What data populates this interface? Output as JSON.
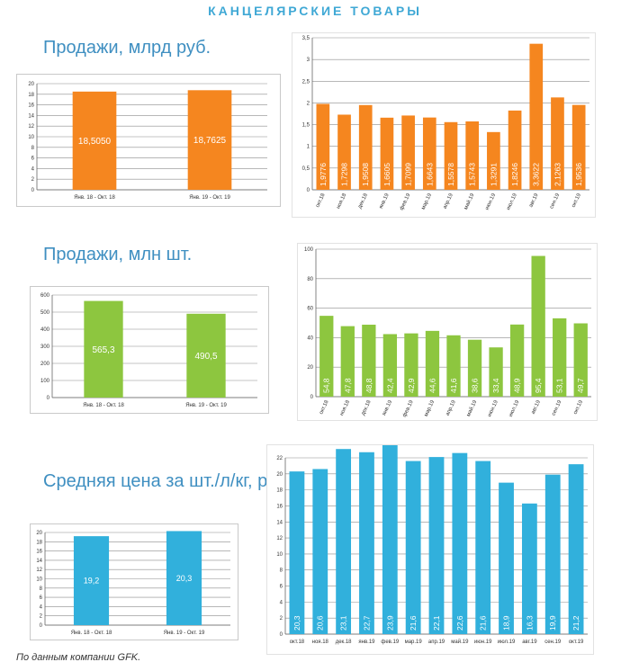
{
  "header": {
    "title": "КАНЦЕЛЯРСКИЕ ТОВАРЫ"
  },
  "sections": {
    "sales_rub": {
      "title": "Продажи, млрд руб."
    },
    "sales_units": {
      "title": "Продажи, млн шт."
    },
    "avg_price": {
      "title": "Средняя цена за шт./л/кг, руб."
    }
  },
  "footer": {
    "note": "По данным компании GFK."
  },
  "chart_data": [
    {
      "id": "sales-rub-annual",
      "type": "bar",
      "color": "#f5861f",
      "categories": [
        "Янв. 18 - Окт. 18",
        "Янв. 19 - Окт. 19"
      ],
      "values": [
        18.505,
        18.7625
      ],
      "data_labels": [
        "18,5050",
        "18,7625"
      ],
      "ylim": [
        0,
        20
      ],
      "yticks": [
        0,
        2,
        4,
        6,
        8,
        10,
        12,
        14,
        16,
        18,
        20
      ],
      "ytick_labels": [
        "0",
        "2",
        "4",
        "6",
        "8",
        "10",
        "12",
        "14",
        "16",
        "18",
        "20"
      ],
      "grid": true
    },
    {
      "id": "sales-rub-monthly",
      "type": "bar",
      "color": "#f5861f",
      "categories": [
        "окт.18",
        "ноя.18",
        "дек.18",
        "янв.19",
        "фев.19",
        "мар.19",
        "апр.19",
        "май.19",
        "июн.19",
        "июл.19",
        "авг.19",
        "сен.19",
        "окт.19"
      ],
      "values": [
        1.9776,
        1.7298,
        1.9508,
        1.6605,
        1.7099,
        1.6643,
        1.5578,
        1.5743,
        1.3291,
        1.8246,
        3.3622,
        2.1263,
        1.9536
      ],
      "data_labels": [
        "1,9776",
        "1,7298",
        "1,9508",
        "1,6605",
        "1,7099",
        "1,6643",
        "1,5578",
        "1,5743",
        "1,3291",
        "1,8246",
        "3,3622",
        "2,1263",
        "1,9536"
      ],
      "ylim": [
        0,
        3.5
      ],
      "yticks": [
        0,
        0.5,
        1,
        1.5,
        2,
        2.5,
        3,
        3.5
      ],
      "ytick_labels": [
        "0",
        "0,5",
        "1",
        "1,5",
        "2",
        "2,5",
        "3",
        "3,5"
      ],
      "grid": true
    },
    {
      "id": "sales-units-annual",
      "type": "bar",
      "color": "#8dc63f",
      "categories": [
        "Янв. 18 - Окт. 18",
        "Янв. 19 - Окт. 19"
      ],
      "values": [
        565.3,
        490.5
      ],
      "data_labels": [
        "565,3",
        "490,5"
      ],
      "ylim": [
        0,
        600
      ],
      "yticks": [
        0,
        100,
        200,
        300,
        400,
        500,
        600
      ],
      "ytick_labels": [
        "0",
        "100",
        "200",
        "300",
        "400",
        "500",
        "600"
      ],
      "grid": true
    },
    {
      "id": "sales-units-monthly",
      "type": "bar",
      "color": "#8dc63f",
      "categories": [
        "окт.18",
        "ноя.18",
        "дек.18",
        "янв.19",
        "фев.19",
        "мар.19",
        "апр.19",
        "май.19",
        "июн.19",
        "июл.19",
        "авг.19",
        "сен.19",
        "окт.19"
      ],
      "values": [
        54.8,
        47.8,
        48.8,
        42.4,
        42.9,
        44.6,
        41.6,
        38.6,
        33.4,
        48.9,
        95.4,
        53.1,
        49.7
      ],
      "data_labels": [
        "54,8",
        "47,8",
        "48,8",
        "42,4",
        "42,9",
        "44,6",
        "41,6",
        "38,6",
        "33,4",
        "48,9",
        "95,4",
        "53,1",
        "49,7"
      ],
      "ylim": [
        0,
        100
      ],
      "yticks": [
        0,
        20,
        40,
        60,
        80,
        100
      ],
      "ytick_labels": [
        "0",
        "20",
        "40",
        "60",
        "80",
        "100"
      ],
      "grid": true
    },
    {
      "id": "avg-price-annual",
      "type": "bar",
      "color": "#31b0dc",
      "categories": [
        "Янв. 18 - Окт. 18",
        "Янв. 19 - Окт. 19"
      ],
      "values": [
        19.2,
        20.3
      ],
      "data_labels": [
        "19,2",
        "20,3"
      ],
      "ylim": [
        0,
        20
      ],
      "yticks": [
        0,
        2,
        4,
        6,
        8,
        10,
        12,
        14,
        16,
        18,
        20
      ],
      "ytick_labels": [
        "0",
        "2",
        "4",
        "6",
        "8",
        "10",
        "12",
        "14",
        "16",
        "18",
        "20"
      ],
      "grid": true
    },
    {
      "id": "avg-price-monthly",
      "type": "bar",
      "color": "#31b0dc",
      "categories": [
        "окт.18",
        "ноя.18",
        "дек.18",
        "янв.19",
        "фев.19",
        "мар.19",
        "апр.19",
        "май.19",
        "июн.19",
        "июл.19",
        "авг.19",
        "сен.19",
        "окт.19"
      ],
      "values": [
        20.3,
        20.6,
        23.1,
        22.7,
        23.9,
        21.6,
        22.1,
        22.6,
        21.6,
        18.9,
        16.3,
        19.9,
        21.2
      ],
      "data_labels": [
        "20,3",
        "20,6",
        "23,1",
        "22,7",
        "23,9",
        "21,6",
        "22,1",
        "22,6",
        "21,6",
        "18,9",
        "16,3",
        "19,9",
        "21,2"
      ],
      "ylim": [
        0,
        22
      ],
      "yticks": [
        0,
        2,
        4,
        6,
        8,
        10,
        12,
        14,
        16,
        18,
        20,
        22
      ],
      "ytick_labels": [
        "0",
        "2",
        "4",
        "6",
        "8",
        "10",
        "12",
        "14",
        "16",
        "18",
        "20",
        "22"
      ],
      "grid": true
    }
  ]
}
